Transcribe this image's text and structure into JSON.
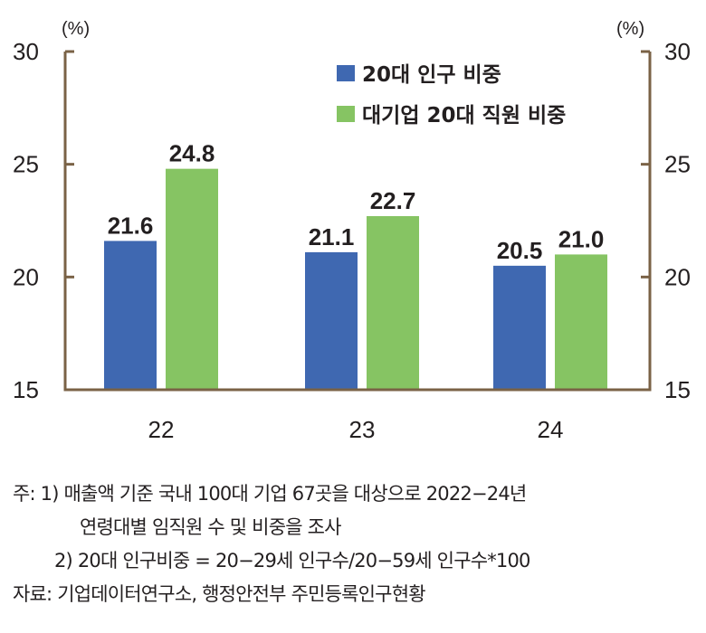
{
  "chart_data": {
    "type": "bar",
    "title": "",
    "categories": [
      "22",
      "23",
      "24"
    ],
    "series": [
      {
        "name": "20대 인구 비중",
        "color": "#3f68b1",
        "values": [
          21.6,
          21.1,
          20.5
        ]
      },
      {
        "name": "대기업 20대 직원 비중",
        "color": "#86c463",
        "values": [
          24.8,
          22.7,
          21.0
        ]
      }
    ],
    "data_labels": [
      [
        "21.6",
        "21.1",
        "20.5"
      ],
      [
        "24.8",
        "22.7",
        "21.0"
      ]
    ],
    "xlabel": "",
    "ylabel": "(%)",
    "ylabel_right": "(%)",
    "ylim": [
      15,
      30
    ],
    "yticks": [
      "15",
      "20",
      "25",
      "30"
    ],
    "grid": false,
    "legend_position": "top-right",
    "axis_color": "#7a6246"
  },
  "notes": {
    "line1": "주: 1) 매출액 기준 국내 100대 기업 67곳을 대상으로 2022−24년",
    "line2": "연령대별 임직원 수 및 비중을 조사",
    "line3": "2) 20대 인구비중 = 20−29세 인구수/20−59세 인구수*100",
    "source": "자료: 기업데이터연구소, 행정안전부 주민등록인구현황"
  }
}
